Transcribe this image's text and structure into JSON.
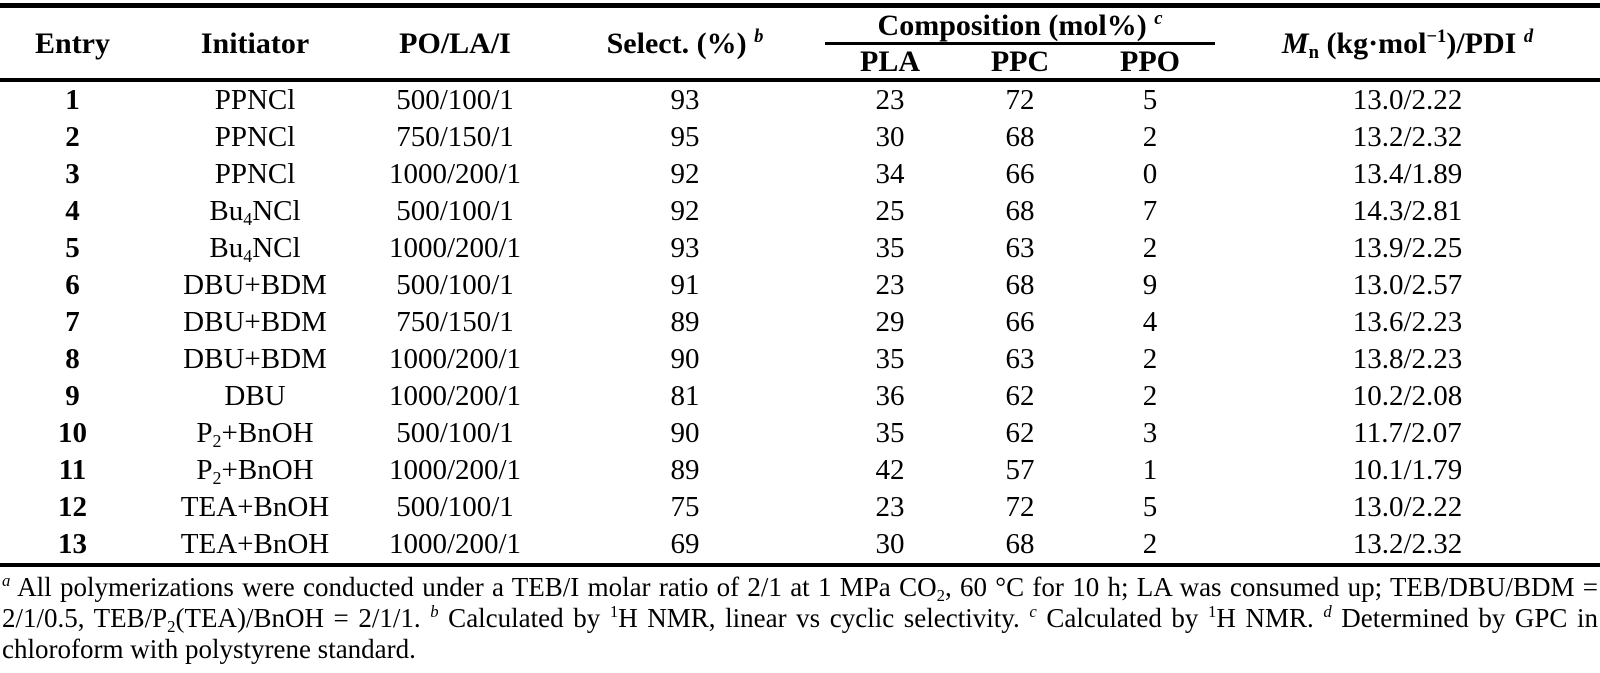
{
  "colors": {
    "text": "#000000",
    "background": "#ffffff",
    "rule": "#000000"
  },
  "table": {
    "header": {
      "entry": [
        {
          "text": "Entry"
        }
      ],
      "initiator": [
        {
          "text": "Initiator"
        }
      ],
      "po_la_i": [
        {
          "text": "PO/LA/I"
        }
      ],
      "select": [
        {
          "text": "Select. (%) "
        },
        {
          "text": "b",
          "sup": true,
          "italic": true
        }
      ],
      "composition": [
        {
          "text": "Composition (mol%) "
        },
        {
          "text": "c",
          "sup": true,
          "italic": true
        }
      ],
      "pla": [
        {
          "text": "PLA"
        }
      ],
      "ppc": [
        {
          "text": "PPC"
        }
      ],
      "ppo": [
        {
          "text": "PPO"
        }
      ],
      "mn_pdi": [
        {
          "text": "M",
          "italic": true
        },
        {
          "text": "n",
          "sub": true
        },
        {
          "text": " (kg·mol"
        },
        {
          "text": "−1",
          "sup": true
        },
        {
          "text": ")/PDI "
        },
        {
          "text": "d",
          "sup": true,
          "italic": true
        }
      ]
    },
    "rows": [
      {
        "entry": "1",
        "initiator": [
          {
            "text": "PPNCl"
          }
        ],
        "po_la_i": "500/100/1",
        "select": "93",
        "pla": "23",
        "ppc": "72",
        "ppo": "5",
        "mn_pdi": "13.0/2.22"
      },
      {
        "entry": "2",
        "initiator": [
          {
            "text": "PPNCl"
          }
        ],
        "po_la_i": "750/150/1",
        "select": "95",
        "pla": "30",
        "ppc": "68",
        "ppo": "2",
        "mn_pdi": "13.2/2.32"
      },
      {
        "entry": "3",
        "initiator": [
          {
            "text": "PPNCl"
          }
        ],
        "po_la_i": "1000/200/1",
        "select": "92",
        "pla": "34",
        "ppc": "66",
        "ppo": "0",
        "mn_pdi": "13.4/1.89"
      },
      {
        "entry": "4",
        "initiator": [
          {
            "text": "Bu"
          },
          {
            "text": "4",
            "sub": true
          },
          {
            "text": "NCl"
          }
        ],
        "po_la_i": "500/100/1",
        "select": "92",
        "pla": "25",
        "ppc": "68",
        "ppo": "7",
        "mn_pdi": "14.3/2.81"
      },
      {
        "entry": "5",
        "initiator": [
          {
            "text": "Bu"
          },
          {
            "text": "4",
            "sub": true
          },
          {
            "text": "NCl"
          }
        ],
        "po_la_i": "1000/200/1",
        "select": "93",
        "pla": "35",
        "ppc": "63",
        "ppo": "2",
        "mn_pdi": "13.9/2.25"
      },
      {
        "entry": "6",
        "initiator": [
          {
            "text": "DBU+BDM"
          }
        ],
        "po_la_i": "500/100/1",
        "select": "91",
        "pla": "23",
        "ppc": "68",
        "ppo": "9",
        "mn_pdi": "13.0/2.57"
      },
      {
        "entry": "7",
        "initiator": [
          {
            "text": "DBU+BDM"
          }
        ],
        "po_la_i": "750/150/1",
        "select": "89",
        "pla": "29",
        "ppc": "66",
        "ppo": "4",
        "mn_pdi": "13.6/2.23"
      },
      {
        "entry": "8",
        "initiator": [
          {
            "text": "DBU+BDM"
          }
        ],
        "po_la_i": "1000/200/1",
        "select": "90",
        "pla": "35",
        "ppc": "63",
        "ppo": "2",
        "mn_pdi": "13.8/2.23"
      },
      {
        "entry": "9",
        "initiator": [
          {
            "text": "DBU"
          }
        ],
        "po_la_i": "1000/200/1",
        "select": "81",
        "pla": "36",
        "ppc": "62",
        "ppo": "2",
        "mn_pdi": "10.2/2.08"
      },
      {
        "entry": "10",
        "initiator": [
          {
            "text": "P"
          },
          {
            "text": "2",
            "sub": true
          },
          {
            "text": "+BnOH"
          }
        ],
        "po_la_i": "500/100/1",
        "select": "90",
        "pla": "35",
        "ppc": "62",
        "ppo": "3",
        "mn_pdi": "11.7/2.07"
      },
      {
        "entry": "11",
        "initiator": [
          {
            "text": "P"
          },
          {
            "text": "2",
            "sub": true
          },
          {
            "text": "+BnOH"
          }
        ],
        "po_la_i": "1000/200/1",
        "select": "89",
        "pla": "42",
        "ppc": "57",
        "ppo": "1",
        "mn_pdi": "10.1/1.79"
      },
      {
        "entry": "12",
        "initiator": [
          {
            "text": "TEA+BnOH"
          }
        ],
        "po_la_i": "500/100/1",
        "select": "75",
        "pla": "23",
        "ppc": "72",
        "ppo": "5",
        "mn_pdi": "13.0/2.22"
      },
      {
        "entry": "13",
        "initiator": [
          {
            "text": "TEA+BnOH"
          }
        ],
        "po_la_i": "1000/200/1",
        "select": "69",
        "pla": "30",
        "ppc": "68",
        "ppo": "2",
        "mn_pdi": "13.2/2.32"
      }
    ]
  },
  "footnotes": {
    "segments": [
      {
        "text": "a",
        "sup": true,
        "italic": true
      },
      {
        "text": " All polymerizations were conducted under a TEB/I molar ratio of 2/1 at 1 MPa CO"
      },
      {
        "text": "2",
        "sub": true
      },
      {
        "text": ", 60 °C for 10 h; LA was consumed up; TEB/DBU/BDM = 2/1/0.5, TEB/P"
      },
      {
        "text": "2",
        "sub": true
      },
      {
        "text": "(TEA)/BnOH = 2/1/1. "
      },
      {
        "text": "b",
        "sup": true,
        "italic": true
      },
      {
        "text": " Calculated by "
      },
      {
        "text": "1",
        "sup": true
      },
      {
        "text": "H NMR, linear vs cyclic selectivity. "
      },
      {
        "text": "c",
        "sup": true,
        "italic": true
      },
      {
        "text": " Calculated by "
      },
      {
        "text": "1",
        "sup": true
      },
      {
        "text": "H NMR. "
      },
      {
        "text": "d",
        "sup": true,
        "italic": true
      },
      {
        "text": " Determined by GPC in chloroform with polystyrene standard."
      }
    ]
  }
}
